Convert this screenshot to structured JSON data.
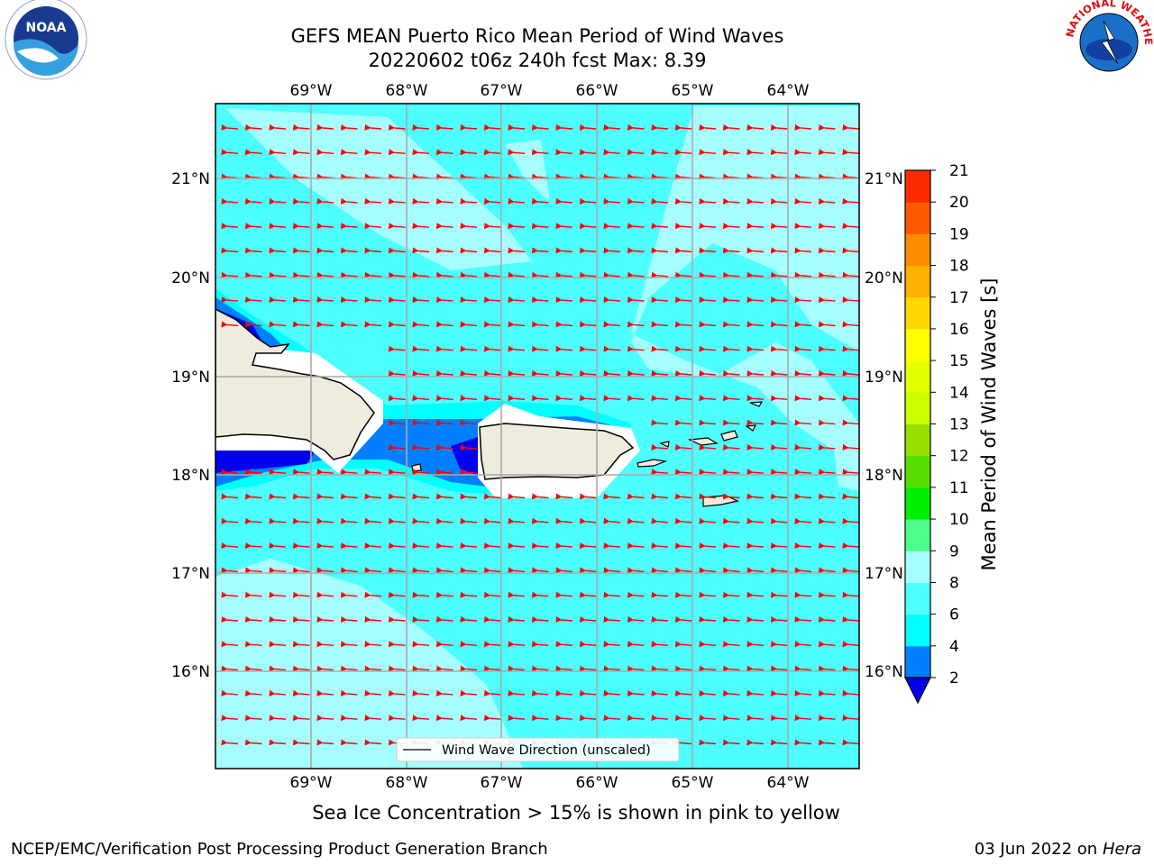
{
  "title": {
    "line1": "GEFS MEAN Puerto Rico Mean Period of Wind Waves",
    "line2": "20220602 t06z 240h fcst   Max: 8.39"
  },
  "map": {
    "lon_labels": [
      "69°W",
      "68°W",
      "67°W",
      "66°W",
      "65°W",
      "64°W"
    ],
    "lat_labels": [
      "21°N",
      "20°N",
      "19°N",
      "18°N",
      "17°N",
      "16°N"
    ],
    "legend_label": "Wind Wave Direction (unscaled)",
    "arrow_color": "#ff0000",
    "land_color": "#eeecdc",
    "ocean_colors": {
      "period_4_6": "#00ffff",
      "period_6_8": "#4dffff",
      "period_8_9": "#a6ffff",
      "period_2_4": "#0080ff",
      "period_lt_2": "#0000f0"
    }
  },
  "colorbar": {
    "label": "Mean Period of Wind Waves [s]",
    "ticks": [
      "2",
      "4",
      "6",
      "8",
      "9",
      "10",
      "11",
      "12",
      "13",
      "14",
      "15",
      "16",
      "17",
      "18",
      "19",
      "20",
      "21"
    ],
    "colors": [
      "#0080ff",
      "#00ffff",
      "#4dffff",
      "#a6ffff",
      "#4dff88",
      "#00ee00",
      "#55dd00",
      "#99dd00",
      "#ccff00",
      "#e6ff00",
      "#ffff00",
      "#ffd700",
      "#ffb000",
      "#ff8c00",
      "#ff5a00",
      "#ff2a00"
    ],
    "extend_color": "#0000f0"
  },
  "footer": {
    "note": "Sea Ice Concentration > 15% is shown in pink to yellow",
    "credit": "NCEP/EMC/Verification Post Processing Product Generation Branch",
    "date": "03 Jun 2022 on",
    "host": "Hera"
  },
  "logos": {
    "noaa_text": "NOAA",
    "nws_text": "NATIONAL WEATHER SERVICE"
  }
}
